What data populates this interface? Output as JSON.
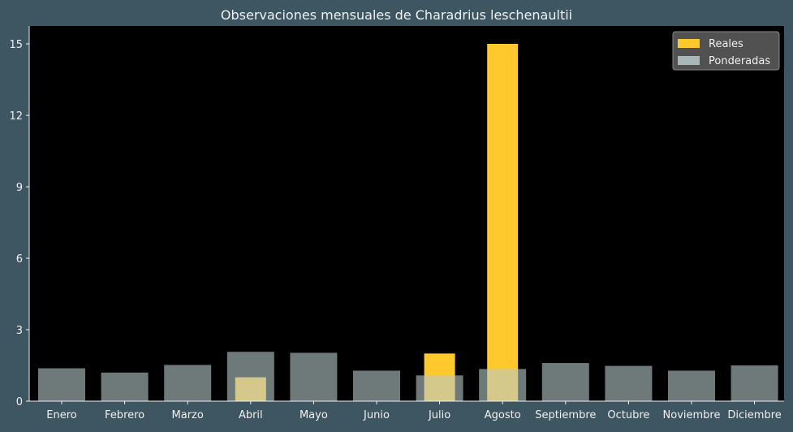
{
  "chart_data": {
    "type": "bar",
    "title": "Observaciones mensuales de Charadrius leschenaultii",
    "xlabel": "",
    "ylabel": "",
    "categories": [
      "Enero",
      "Febrero",
      "Marzo",
      "Abril",
      "Mayo",
      "Junio",
      "Julio",
      "Agosto",
      "Septiembre",
      "Octubre",
      "Noviembre",
      "Diciembre"
    ],
    "series": [
      {
        "name": "Reales",
        "color": "#ffc82c",
        "values": [
          0,
          0,
          0,
          1,
          0,
          0,
          2,
          15,
          0,
          0,
          0,
          0
        ]
      },
      {
        "name": "Ponderadas",
        "color": "#b7c9cc",
        "opacity": 0.6,
        "values": [
          1.38,
          1.2,
          1.52,
          2.07,
          2.03,
          1.28,
          1.08,
          1.35,
          1.6,
          1.48,
          1.28,
          1.5
        ]
      }
    ],
    "ylim": [
      0,
      15.75
    ],
    "yticks": [
      0,
      3,
      6,
      9,
      12,
      15
    ],
    "grid": false,
    "legend": "top-right",
    "colors": {
      "figure_background": "#3e5562",
      "plot_background": "#000000",
      "text": "#f0f0f0",
      "legend_background": "#555555"
    }
  }
}
